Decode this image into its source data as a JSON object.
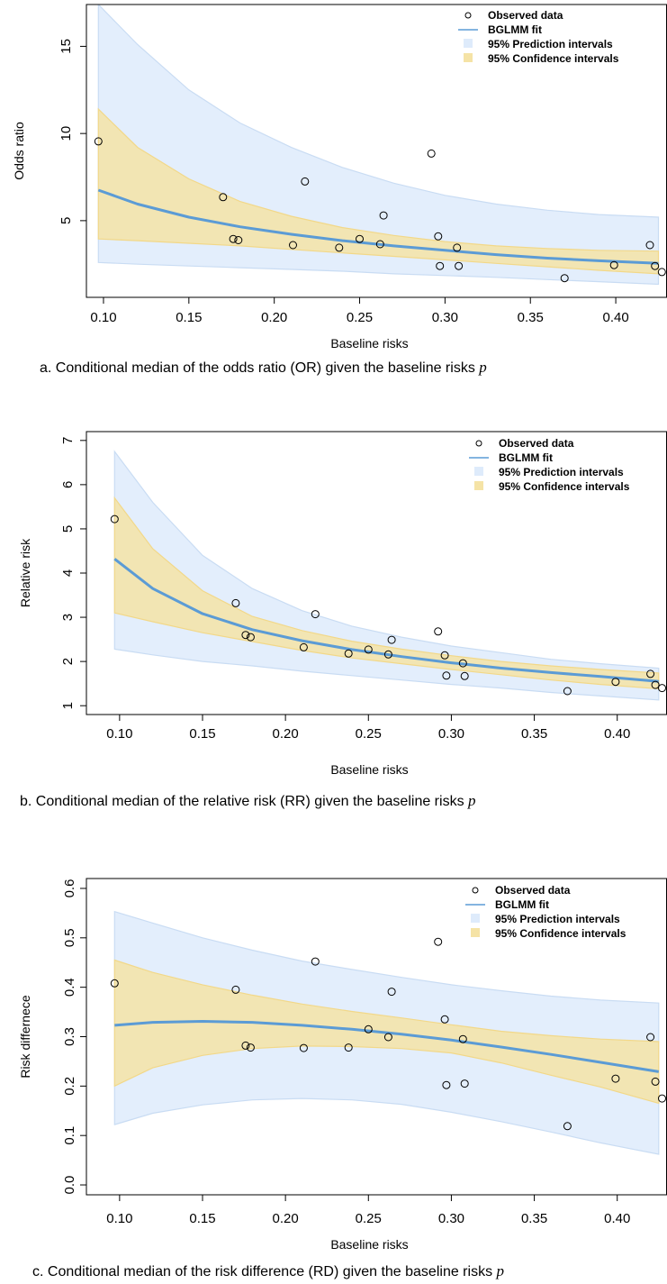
{
  "charts": [
    {
      "caption_text": "a. Conditional median of the odds ratio (OR) given the baseline risks ",
      "caption_math": "p"
    },
    {
      "caption_text": "b. Conditional median of the relative risk (RR) given the baseline risks ",
      "caption_math": "p"
    },
    {
      "caption_text": "c. Conditional median of the risk difference (RD) given the baseline risks ",
      "caption_math": "p"
    }
  ],
  "legend": {
    "observed": "Observed data",
    "fit": "BGLMM fit",
    "prediction": "95% Prediction intervals",
    "confidence": "95% Confidence intervals"
  },
  "colors": {
    "fit_line": "#5b9bd5",
    "prediction_band": "#deebfb",
    "confidence_band": "#f5e3a6",
    "points": "#000000"
  },
  "chart_data": [
    {
      "type": "scatter",
      "xlabel": "Baseline risks",
      "ylabel": "Odds ratio",
      "xlim": [
        0.09,
        0.43
      ],
      "ylim": [
        0.6,
        17.4
      ],
      "xticks": [
        0.1,
        0.15,
        0.2,
        0.25,
        0.3,
        0.35,
        0.4
      ],
      "yticks": [
        5,
        10,
        15
      ],
      "points": [
        {
          "x": 0.097,
          "y": 9.55
        },
        {
          "x": 0.17,
          "y": 6.35
        },
        {
          "x": 0.176,
          "y": 3.95
        },
        {
          "x": 0.179,
          "y": 3.88
        },
        {
          "x": 0.211,
          "y": 3.6
        },
        {
          "x": 0.218,
          "y": 7.25
        },
        {
          "x": 0.238,
          "y": 3.45
        },
        {
          "x": 0.25,
          "y": 3.95
        },
        {
          "x": 0.262,
          "y": 3.65
        },
        {
          "x": 0.264,
          "y": 5.3
        },
        {
          "x": 0.292,
          "y": 8.85
        },
        {
          "x": 0.296,
          "y": 4.1
        },
        {
          "x": 0.297,
          "y": 2.4
        },
        {
          "x": 0.307,
          "y": 3.45
        },
        {
          "x": 0.308,
          "y": 2.4
        },
        {
          "x": 0.37,
          "y": 1.7
        },
        {
          "x": 0.399,
          "y": 2.45
        },
        {
          "x": 0.42,
          "y": 3.6
        },
        {
          "x": 0.423,
          "y": 2.4
        },
        {
          "x": 0.427,
          "y": 2.05
        }
      ],
      "fit": {
        "x": [
          0.097,
          0.12,
          0.15,
          0.18,
          0.21,
          0.24,
          0.27,
          0.3,
          0.33,
          0.36,
          0.39,
          0.425
        ],
        "y": [
          6.75,
          5.95,
          5.2,
          4.65,
          4.22,
          3.85,
          3.55,
          3.3,
          3.05,
          2.85,
          2.7,
          2.55
        ]
      },
      "confidence": {
        "x": [
          0.097,
          0.12,
          0.15,
          0.18,
          0.21,
          0.24,
          0.27,
          0.3,
          0.33,
          0.36,
          0.39,
          0.425
        ],
        "lower": [
          3.95,
          3.85,
          3.7,
          3.55,
          3.35,
          3.15,
          2.95,
          2.75,
          2.55,
          2.35,
          2.15,
          1.95
        ],
        "upper": [
          11.4,
          9.2,
          7.4,
          6.1,
          5.25,
          4.6,
          4.15,
          3.8,
          3.55,
          3.4,
          3.3,
          3.25
        ]
      },
      "prediction": {
        "x": [
          0.097,
          0.12,
          0.15,
          0.18,
          0.21,
          0.24,
          0.27,
          0.3,
          0.33,
          0.36,
          0.39,
          0.425
        ],
        "lower": [
          2.6,
          2.5,
          2.4,
          2.3,
          2.2,
          2.1,
          1.95,
          1.85,
          1.75,
          1.62,
          1.5,
          1.35
        ],
        "upper": [
          17.4,
          15.1,
          12.5,
          10.6,
          9.2,
          8.05,
          7.15,
          6.45,
          5.95,
          5.6,
          5.35,
          5.2
        ]
      }
    },
    {
      "type": "scatter",
      "xlabel": "Baseline risks",
      "ylabel": "Relative risk",
      "xlim": [
        0.08,
        0.43
      ],
      "ylim": [
        0.8,
        7.2
      ],
      "xticks": [
        0.1,
        0.15,
        0.2,
        0.25,
        0.3,
        0.35,
        0.4
      ],
      "yticks": [
        1,
        2,
        3,
        4,
        5,
        6,
        7
      ],
      "points": [
        {
          "x": 0.097,
          "y": 5.22
        },
        {
          "x": 0.17,
          "y": 3.32
        },
        {
          "x": 0.176,
          "y": 2.6
        },
        {
          "x": 0.179,
          "y": 2.55
        },
        {
          "x": 0.211,
          "y": 2.32
        },
        {
          "x": 0.218,
          "y": 3.07
        },
        {
          "x": 0.238,
          "y": 2.18
        },
        {
          "x": 0.25,
          "y": 2.27
        },
        {
          "x": 0.262,
          "y": 2.16
        },
        {
          "x": 0.264,
          "y": 2.49
        },
        {
          "x": 0.292,
          "y": 2.68
        },
        {
          "x": 0.296,
          "y": 2.14
        },
        {
          "x": 0.297,
          "y": 1.68
        },
        {
          "x": 0.307,
          "y": 1.96
        },
        {
          "x": 0.308,
          "y": 1.67
        },
        {
          "x": 0.37,
          "y": 1.33
        },
        {
          "x": 0.399,
          "y": 1.54
        },
        {
          "x": 0.42,
          "y": 1.72
        },
        {
          "x": 0.423,
          "y": 1.47
        },
        {
          "x": 0.427,
          "y": 1.4
        }
      ],
      "fit": {
        "x": [
          0.097,
          0.12,
          0.15,
          0.18,
          0.21,
          0.24,
          0.27,
          0.3,
          0.33,
          0.36,
          0.39,
          0.425
        ],
        "y": [
          4.32,
          3.65,
          3.08,
          2.72,
          2.47,
          2.27,
          2.11,
          1.97,
          1.85,
          1.75,
          1.66,
          1.55
        ]
      },
      "confidence": {
        "x": [
          0.097,
          0.12,
          0.15,
          0.18,
          0.21,
          0.24,
          0.27,
          0.3,
          0.33,
          0.36,
          0.39,
          0.425
        ],
        "lower": [
          3.1,
          2.9,
          2.65,
          2.45,
          2.25,
          2.08,
          1.95,
          1.82,
          1.7,
          1.58,
          1.48,
          1.38
        ],
        "upper": [
          5.7,
          4.55,
          3.6,
          3.02,
          2.7,
          2.46,
          2.28,
          2.13,
          2.0,
          1.9,
          1.82,
          1.74
        ]
      },
      "prediction": {
        "x": [
          0.097,
          0.12,
          0.15,
          0.18,
          0.21,
          0.24,
          0.27,
          0.3,
          0.33,
          0.36,
          0.39,
          0.425
        ],
        "lower": [
          2.28,
          2.15,
          2.0,
          1.9,
          1.78,
          1.68,
          1.58,
          1.48,
          1.4,
          1.3,
          1.22,
          1.13
        ],
        "upper": [
          6.75,
          5.6,
          4.4,
          3.65,
          3.15,
          2.8,
          2.55,
          2.35,
          2.2,
          2.05,
          1.95,
          1.85
        ]
      }
    },
    {
      "type": "scatter",
      "xlabel": "Baseline risks",
      "ylabel": "Risk differnece",
      "xlim": [
        0.08,
        0.43
      ],
      "ylim": [
        -0.02,
        0.62
      ],
      "xticks": [
        0.1,
        0.15,
        0.2,
        0.25,
        0.3,
        0.35,
        0.4
      ],
      "yticks": [
        0.0,
        0.1,
        0.2,
        0.3,
        0.4,
        0.5,
        0.6
      ],
      "points": [
        {
          "x": 0.097,
          "y": 0.408
        },
        {
          "x": 0.17,
          "y": 0.395
        },
        {
          "x": 0.176,
          "y": 0.282
        },
        {
          "x": 0.179,
          "y": 0.278
        },
        {
          "x": 0.211,
          "y": 0.277
        },
        {
          "x": 0.218,
          "y": 0.452
        },
        {
          "x": 0.238,
          "y": 0.278
        },
        {
          "x": 0.25,
          "y": 0.315
        },
        {
          "x": 0.262,
          "y": 0.299
        },
        {
          "x": 0.264,
          "y": 0.391
        },
        {
          "x": 0.292,
          "y": 0.492
        },
        {
          "x": 0.296,
          "y": 0.335
        },
        {
          "x": 0.297,
          "y": 0.202
        },
        {
          "x": 0.307,
          "y": 0.295
        },
        {
          "x": 0.308,
          "y": 0.205
        },
        {
          "x": 0.37,
          "y": 0.119
        },
        {
          "x": 0.399,
          "y": 0.215
        },
        {
          "x": 0.42,
          "y": 0.299
        },
        {
          "x": 0.423,
          "y": 0.209
        },
        {
          "x": 0.427,
          "y": 0.175
        }
      ],
      "fit": {
        "x": [
          0.097,
          0.12,
          0.15,
          0.18,
          0.21,
          0.24,
          0.27,
          0.3,
          0.33,
          0.36,
          0.39,
          0.425
        ],
        "y": [
          0.323,
          0.329,
          0.331,
          0.329,
          0.323,
          0.315,
          0.305,
          0.293,
          0.279,
          0.264,
          0.248,
          0.229
        ]
      },
      "confidence": {
        "x": [
          0.097,
          0.12,
          0.15,
          0.18,
          0.21,
          0.24,
          0.27,
          0.3,
          0.33,
          0.36,
          0.39,
          0.425
        ],
        "lower": [
          0.2,
          0.237,
          0.262,
          0.276,
          0.281,
          0.28,
          0.276,
          0.267,
          0.247,
          0.222,
          0.198,
          0.165
        ],
        "upper": [
          0.455,
          0.43,
          0.405,
          0.384,
          0.366,
          0.351,
          0.338,
          0.324,
          0.311,
          0.302,
          0.295,
          0.29
        ]
      },
      "prediction": {
        "x": [
          0.097,
          0.12,
          0.15,
          0.18,
          0.21,
          0.24,
          0.27,
          0.3,
          0.33,
          0.36,
          0.39,
          0.425
        ],
        "lower": [
          0.122,
          0.145,
          0.162,
          0.172,
          0.175,
          0.172,
          0.163,
          0.147,
          0.128,
          0.107,
          0.085,
          0.062
        ],
        "upper": [
          0.553,
          0.53,
          0.5,
          0.475,
          0.453,
          0.436,
          0.42,
          0.405,
          0.393,
          0.382,
          0.374,
          0.368
        ]
      }
    }
  ]
}
